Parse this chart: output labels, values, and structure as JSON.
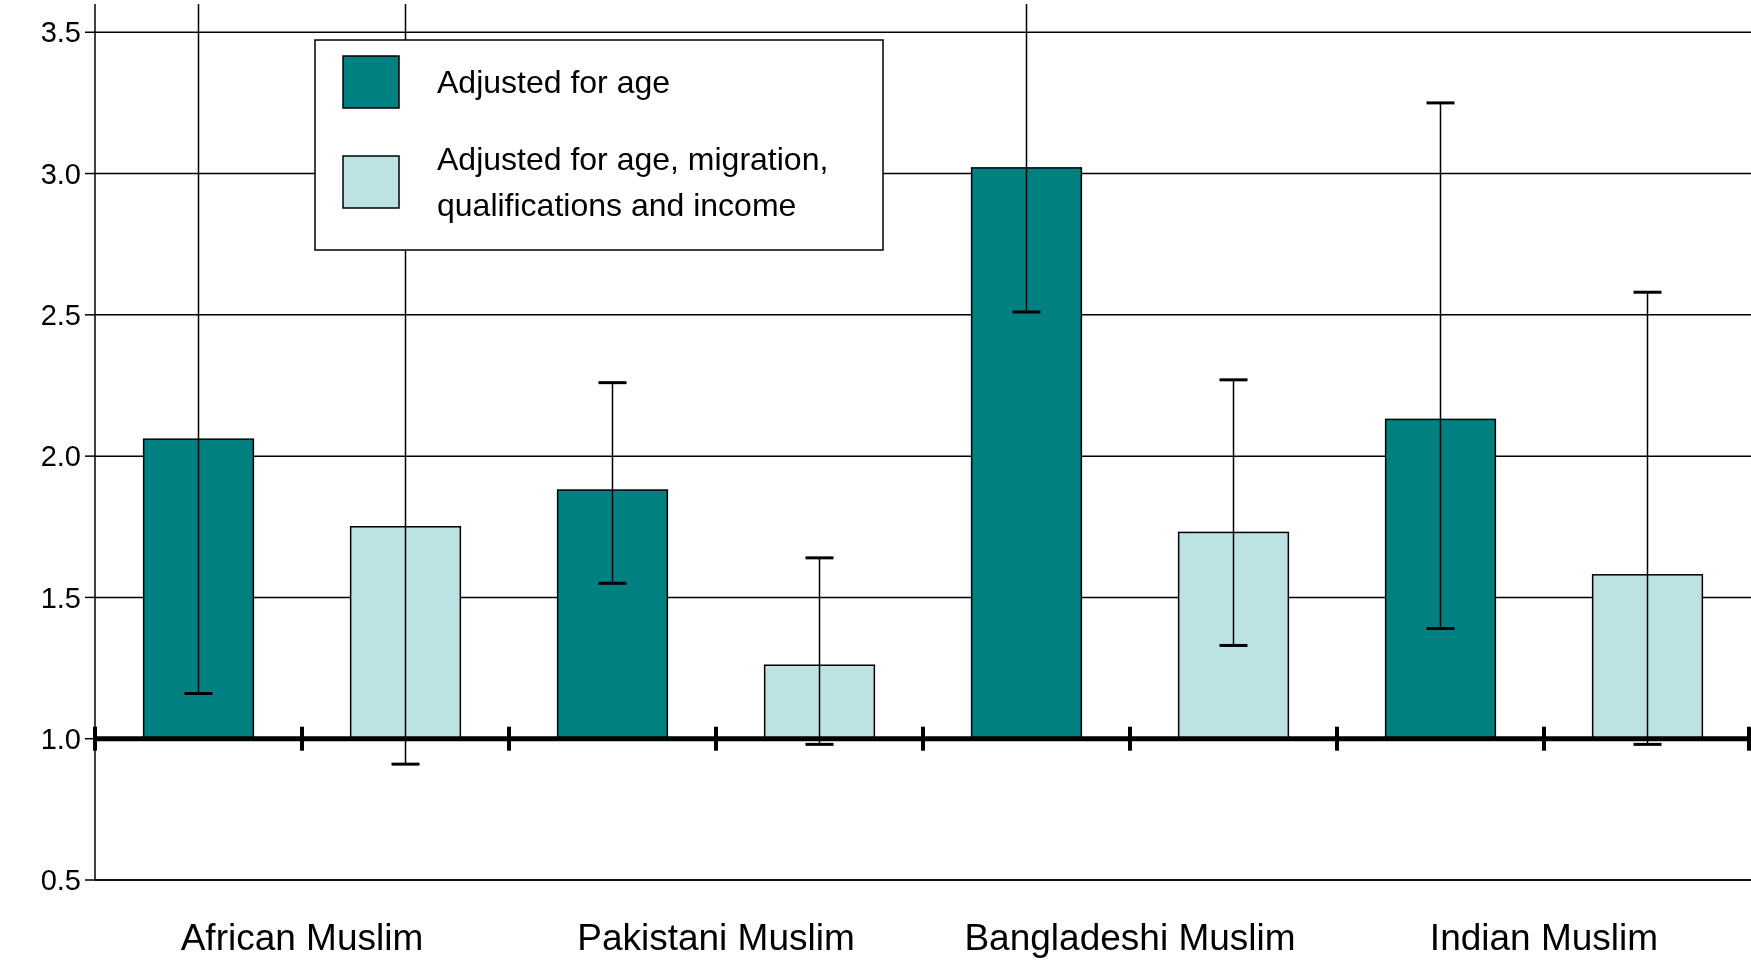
{
  "chart_data": {
    "type": "bar",
    "categories": [
      "African Muslim",
      "Pakistani Muslim",
      "Bangladeshi Muslim",
      "Indian Muslim"
    ],
    "series": [
      {
        "name": "Adjusted for age",
        "color": "#008080",
        "base": [
          1,
          1,
          1,
          1
        ],
        "values": [
          1.06,
          0.88,
          2.02,
          1.13
        ],
        "errors": [
          [
            1.16,
            3.6
          ],
          [
            1.55,
            2.26
          ],
          [
            2.51,
            3.6
          ],
          [
            1.39,
            3.25
          ]
        ]
      },
      {
        "name": "Adjusted for age, migration, qualifications and income",
        "color": "#bde2e4",
        "base": [
          1,
          1,
          1,
          1
        ],
        "values": [
          0.75,
          0.26,
          0.73,
          0.58
        ],
        "errors": [
          [
            0.91,
            3.6
          ],
          [
            0.98,
            1.64
          ],
          [
            1.33,
            2.27
          ],
          [
            0.98,
            2.58
          ]
        ]
      }
    ],
    "ylim": [
      0.5,
      3.6
    ],
    "yticks": [
      {
        "value": 0.5,
        "label": "0.5"
      },
      {
        "value": 1,
        "label": "1.0"
      },
      {
        "value": 1.5,
        "label": "1.5"
      },
      {
        "value": 2,
        "label": "2.0"
      },
      {
        "value": 2.5,
        "label": "2.5"
      },
      {
        "value": 3,
        "label": "3.0"
      },
      {
        "value": 3.5,
        "label": "3.5"
      }
    ],
    "ref_lines": [
      {
        "axis": "y",
        "value": 1
      }
    ],
    "grid": "y",
    "legend": "top left"
  }
}
